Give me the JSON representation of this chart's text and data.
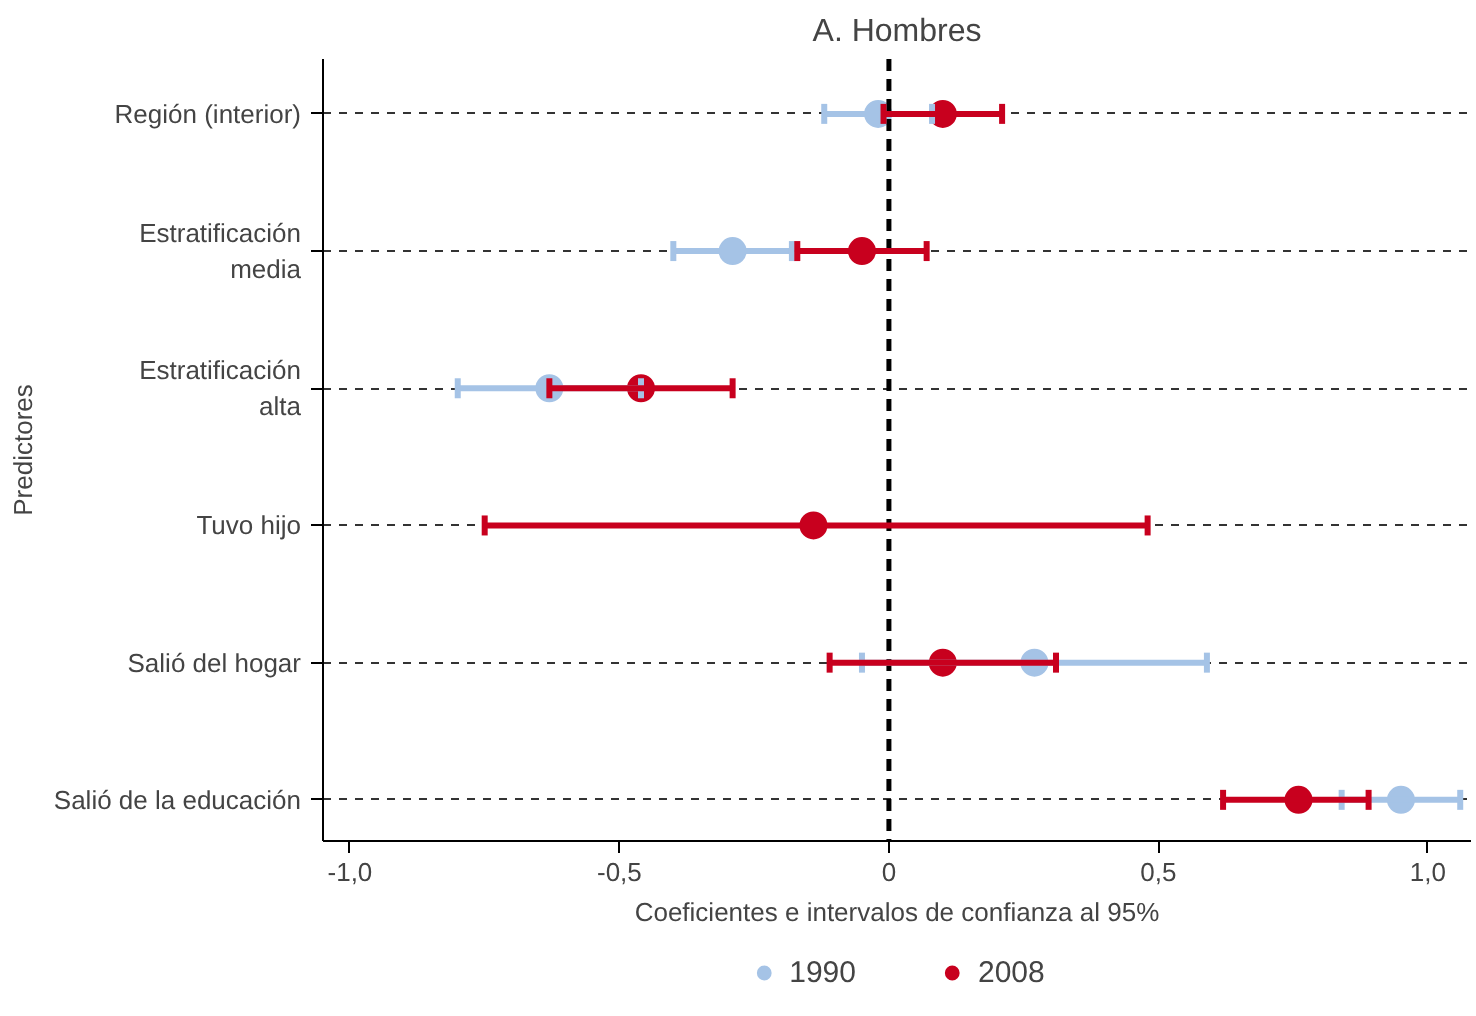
{
  "chart_data": {
    "type": "scatter",
    "orientation": "horizontal",
    "title": "A. Hombres",
    "xlabel": "Coeficientes e intervalos de confianza al 95%",
    "ylabel": "Predictores",
    "categories": [
      "Región (interior)",
      "Estratificación\nmedia",
      "Estratificación\nalta",
      "Tuvo hijo",
      "Salió del hogar",
      "Salió de la educación"
    ],
    "series": [
      {
        "name": "1990",
        "color": "#a5c3e6",
        "values": [
          -0.02,
          -0.29,
          -0.63,
          null,
          0.27,
          0.95
        ],
        "errors": [
          [
            -0.12,
            0.08
          ],
          [
            -0.4,
            -0.18
          ],
          [
            -0.8,
            -0.46
          ],
          null,
          [
            -0.05,
            0.59
          ],
          [
            0.84,
            1.06
          ]
        ]
      },
      {
        "name": "2008",
        "color": "#c8001e",
        "values": [
          0.1,
          -0.05,
          -0.46,
          -0.14,
          0.1,
          0.76
        ],
        "errors": [
          [
            -0.01,
            0.21
          ],
          [
            -0.17,
            0.07
          ],
          [
            -0.63,
            -0.29
          ],
          [
            -0.75,
            0.48
          ],
          [
            -0.11,
            0.31
          ],
          [
            0.62,
            0.89
          ]
        ]
      }
    ],
    "xlim": [
      -1.05,
      1.08
    ],
    "xticks": [
      {
        "value": -1,
        "label": "-1,0"
      },
      {
        "value": -0.5,
        "label": "-0,5"
      },
      0,
      {
        "value": 0.5,
        "label": "0,5"
      },
      {
        "value": 1,
        "label": "1,0"
      }
    ],
    "ref_lines": [
      {
        "axis": "x",
        "value": 0,
        "label": null,
        "color": "#000000",
        "line_style": "dashed"
      }
    ],
    "grid": "y",
    "legend": "bottom",
    "marker": "circle"
  }
}
